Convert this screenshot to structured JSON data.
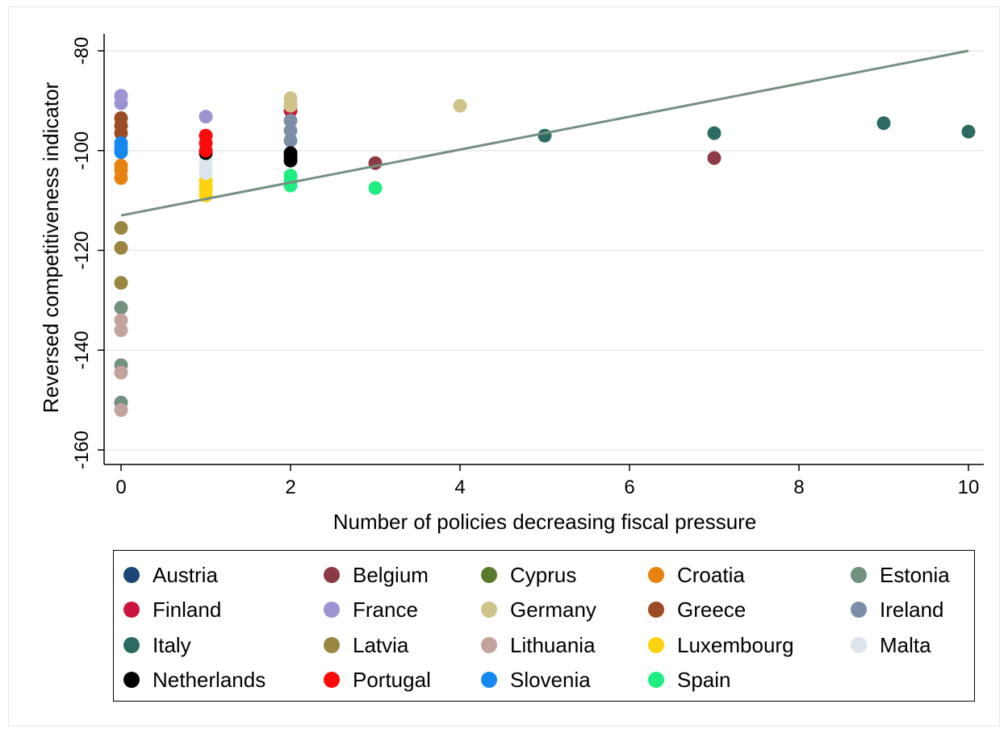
{
  "chart_data": {
    "type": "scatter",
    "title": "",
    "xlabel": "Number of policies decreasing fiscal pressure",
    "ylabel": "Reversed competitiveness indicator",
    "xlim": [
      -0.2,
      10.2
    ],
    "ylim": [
      -163,
      -77
    ],
    "xticks": [
      0,
      2,
      4,
      6,
      8,
      10
    ],
    "yticks": [
      -80,
      -100,
      -120,
      -140,
      -160
    ],
    "grid": "horizontal",
    "legend_position": "bottom",
    "fit_line": {
      "color": "#74907f",
      "x": [
        0,
        10
      ],
      "y": [
        -113,
        -80
      ]
    },
    "series": [
      {
        "name": "Austria",
        "color": "#1a4777",
        "points": []
      },
      {
        "name": "Belgium",
        "color": "#8e3a46",
        "points": [
          [
            3,
            -102.5
          ],
          [
            7,
            -101.5
          ]
        ]
      },
      {
        "name": "Cyprus",
        "color": "#5a7a2b",
        "points": []
      },
      {
        "name": "Croatia",
        "color": "#e7820f",
        "points": [
          [
            0,
            -103
          ],
          [
            0,
            -104
          ],
          [
            0,
            -105.5
          ]
        ]
      },
      {
        "name": "Estonia",
        "color": "#72917f",
        "points": [
          [
            0,
            -131.5
          ],
          [
            0,
            -143
          ],
          [
            0,
            -150.5
          ]
        ]
      },
      {
        "name": "Finland",
        "color": "#c9163f",
        "points": [
          [
            2,
            -92
          ]
        ]
      },
      {
        "name": "France",
        "color": "#9c93d2",
        "points": [
          [
            0,
            -89
          ],
          [
            0,
            -90.5
          ],
          [
            1,
            -93.2
          ],
          [
            2,
            -90.8
          ]
        ]
      },
      {
        "name": "Germany",
        "color": "#cfc38a",
        "points": [
          [
            2,
            -89.5
          ],
          [
            2,
            -91
          ],
          [
            4,
            -91
          ]
        ]
      },
      {
        "name": "Greece",
        "color": "#9b4c22",
        "points": [
          [
            0,
            -93.5
          ],
          [
            0,
            -95
          ],
          [
            0,
            -96.5
          ]
        ]
      },
      {
        "name": "Ireland",
        "color": "#7b8ea6",
        "points": [
          [
            2,
            -94
          ],
          [
            2,
            -96
          ],
          [
            2,
            -98
          ]
        ]
      },
      {
        "name": "Italy",
        "color": "#2b6b62",
        "points": [
          [
            5,
            -97
          ],
          [
            7,
            -96.5
          ],
          [
            9,
            -94.5
          ],
          [
            10,
            -96.2
          ]
        ]
      },
      {
        "name": "Latvia",
        "color": "#9a8541",
        "points": [
          [
            0,
            -115.5
          ],
          [
            0,
            -119.5
          ],
          [
            0,
            -126.5
          ]
        ]
      },
      {
        "name": "Lithuania",
        "color": "#c3a39b",
        "points": [
          [
            0,
            -134
          ],
          [
            0,
            -136
          ],
          [
            0,
            -144.5
          ],
          [
            0,
            -152
          ]
        ]
      },
      {
        "name": "Luxembourg",
        "color": "#fdd20e",
        "points": [
          [
            1,
            -106
          ],
          [
            1,
            -107
          ],
          [
            1,
            -108
          ],
          [
            1,
            -109
          ]
        ]
      },
      {
        "name": "Malta",
        "color": "#dce5ec",
        "points": [
          [
            1,
            -102
          ],
          [
            1,
            -103.5
          ],
          [
            1,
            -104.5
          ]
        ]
      },
      {
        "name": "Netherlands",
        "color": "#000000",
        "points": [
          [
            1,
            -100.5
          ],
          [
            2,
            -100.5
          ],
          [
            2,
            -101.2
          ],
          [
            2,
            -102
          ]
        ]
      },
      {
        "name": "Portugal",
        "color": "#fa0c0c",
        "points": [
          [
            1,
            -97
          ],
          [
            1,
            -98.5
          ],
          [
            1,
            -100
          ]
        ]
      },
      {
        "name": "Slovenia",
        "color": "#1688f2",
        "points": [
          [
            0,
            -98.5
          ],
          [
            0,
            -99.5
          ],
          [
            0,
            -100.3
          ]
        ]
      },
      {
        "name": "Spain",
        "color": "#1fed82",
        "points": [
          [
            2,
            -105
          ],
          [
            2,
            -106
          ],
          [
            2,
            -107
          ],
          [
            3,
            -107.5
          ]
        ]
      }
    ]
  }
}
